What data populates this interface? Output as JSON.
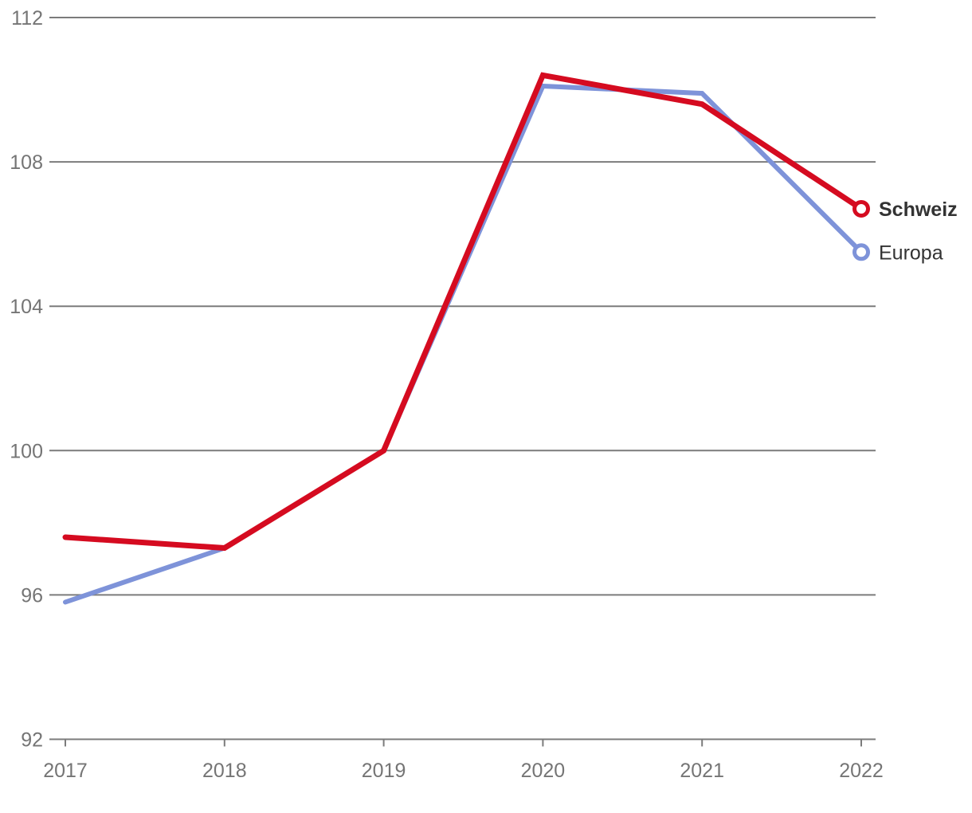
{
  "chart_data": {
    "type": "line",
    "title": "",
    "xlabel": "",
    "ylabel": "",
    "x_labels": [
      "2017",
      "2018",
      "2019",
      "2020",
      "2021",
      "2022"
    ],
    "series": [
      {
        "name": "Europa",
        "values": [
          95.8,
          97.3,
          100.0,
          110.1,
          109.9,
          105.5
        ],
        "color": "#7e93d9",
        "line_width": 6,
        "label_bold": false,
        "end_marker": "open-circle"
      },
      {
        "name": "Schweiz",
        "values": [
          97.6,
          97.3,
          100.0,
          110.4,
          109.6,
          106.7
        ],
        "color": "#d50b20",
        "line_width": 7,
        "label_bold": true,
        "end_marker": "open-circle"
      }
    ],
    "ylim": [
      92,
      112
    ],
    "yticks": [
      92,
      96,
      100,
      104,
      108,
      112
    ],
    "grid": "horizontal",
    "legend_position": "end-of-line-labels"
  },
  "style": {
    "grid_color": "#7b7b7b",
    "tick_label_color": "#757575",
    "series_label_color": "#333333",
    "background": "#ffffff"
  }
}
